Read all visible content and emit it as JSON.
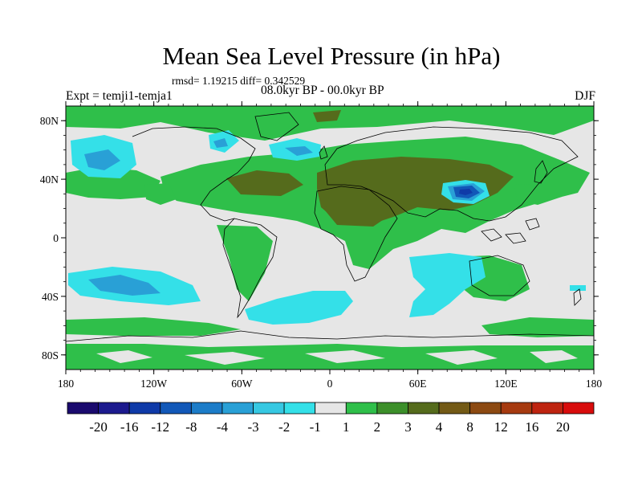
{
  "title": "Mean Sea Level Pressure (in hPa)",
  "stats_line": "rmsd= 1.19215 diff= 0.342529",
  "experiment": "Expt = temji1-temja1",
  "period": "08.0kyr BP - 00.0kyr BP",
  "season": "DJF",
  "map": {
    "projection": "cylindrical equidistant",
    "lon_range": [
      -180,
      180
    ],
    "lat_range": [
      -90,
      90
    ],
    "lon_ticks": [
      {
        "value": -180,
        "label": "180"
      },
      {
        "value": -120,
        "label": "120W"
      },
      {
        "value": -60,
        "label": "60W"
      },
      {
        "value": 0,
        "label": "0"
      },
      {
        "value": 60,
        "label": "60E"
      },
      {
        "value": 120,
        "label": "120E"
      },
      {
        "value": 180,
        "label": "180"
      }
    ],
    "lat_ticks": [
      {
        "value": 80,
        "label": "80N"
      },
      {
        "value": 40,
        "label": "40N"
      },
      {
        "value": 0,
        "label": "0"
      },
      {
        "value": -40,
        "label": "40S"
      },
      {
        "value": -80,
        "label": "80S"
      }
    ]
  },
  "colorbar": {
    "colors": [
      "#1a0a6e",
      "#1c1a8e",
      "#0f3aa8",
      "#1258b8",
      "#1c7cc8",
      "#29a0d6",
      "#36c8e2",
      "#34e0e8",
      "#e6e6e6",
      "#2fbf4a",
      "#3c8f2a",
      "#556b1c",
      "#735a16",
      "#8c4a12",
      "#a63a10",
      "#be2410",
      "#d80c0c"
    ],
    "labels": [
      "-20",
      "-16",
      "-12",
      "-8",
      "-4",
      "-3",
      "-2",
      "-1",
      "1",
      "2",
      "3",
      "4",
      "8",
      "12",
      "16",
      "20"
    ]
  },
  "chart_data": {
    "type": "heatmap",
    "variable": "Mean Sea Level Pressure difference",
    "units": "hPa",
    "levels": [
      -20,
      -16,
      -12,
      -8,
      -4,
      -3,
      -2,
      -1,
      1,
      2,
      3,
      4,
      8,
      12,
      16,
      20
    ],
    "features": [
      {
        "name": "north-pacific-low",
        "lon": -150,
        "lat": 45,
        "category": "-2 to -1",
        "core": "-3 to -2"
      },
      {
        "name": "north-atlantic-low",
        "lon": -25,
        "lat": 58,
        "category": "-2 to -1"
      },
      {
        "name": "hudson-bay-low",
        "lon": -80,
        "lat": 62,
        "category": "-2 to -1"
      },
      {
        "name": "tibetan-low",
        "lon": 92,
        "lat": 33,
        "category": "-8 to -4",
        "core": "-12 to -8"
      },
      {
        "name": "south-pacific-low",
        "lon": -150,
        "lat": -40,
        "category": "-2 to -1",
        "core": "-3 to -2"
      },
      {
        "name": "south-atlantic-low",
        "lon": -5,
        "lat": -45,
        "category": "-2 to -1"
      },
      {
        "name": "indian-ocean-low",
        "lon": 70,
        "lat": -45,
        "category": "-2 to -1"
      },
      {
        "name": "eurasia-high",
        "lon": 60,
        "lat": 40,
        "category": "3 to 4"
      },
      {
        "name": "north-africa-high",
        "lon": 20,
        "lat": 25,
        "category": "2 to 3"
      },
      {
        "name": "subtropical-atlantic-high",
        "lon": -40,
        "lat": 35,
        "category": "3 to 4"
      },
      {
        "name": "southern-ocean-band",
        "lon": 0,
        "lat": -65,
        "category": "1 to 2"
      }
    ]
  }
}
